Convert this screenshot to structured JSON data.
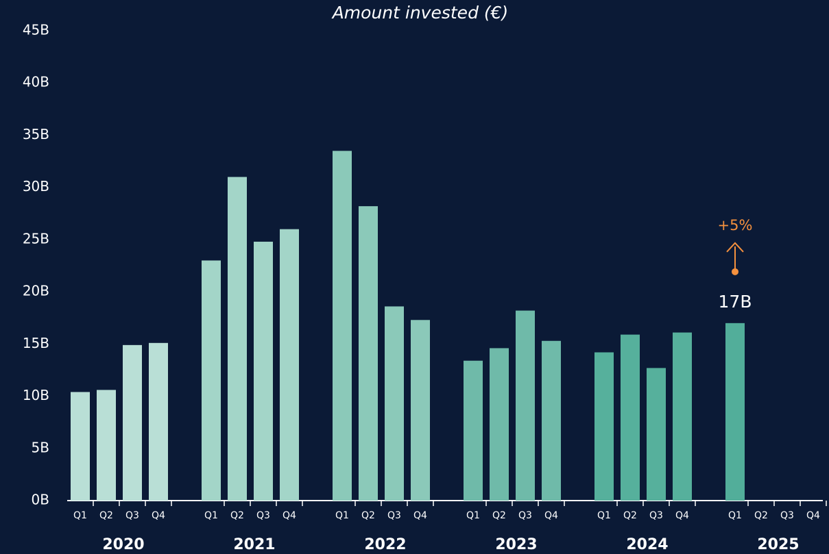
{
  "chart_data": {
    "type": "bar",
    "title": "Amount invested (€)",
    "groups": [
      "2020",
      "2021",
      "2022",
      "2023",
      "2024",
      "2025"
    ],
    "group_colors": [
      "#b9dfd6",
      "#a3d5c8",
      "#8bc9b9",
      "#6fbaa9",
      "#56b09c",
      "#52ae9a"
    ],
    "categories": [
      "Q1",
      "Q2",
      "Q3",
      "Q4",
      "Q1",
      "Q2",
      "Q3",
      "Q4",
      "Q1",
      "Q2",
      "Q3",
      "Q4",
      "Q1",
      "Q2",
      "Q3",
      "Q4",
      "Q1",
      "Q2",
      "Q3",
      "Q4",
      "Q1",
      "Q2",
      "Q3",
      "Q4"
    ],
    "values": [
      10.4,
      10.6,
      14.9,
      15.1,
      23.0,
      31.0,
      24.8,
      26.0,
      33.5,
      28.2,
      18.6,
      17.3,
      13.4,
      14.6,
      18.2,
      15.3,
      14.2,
      15.9,
      12.7,
      16.1,
      17,
      null,
      null,
      null
    ],
    "value_labels": [
      null,
      null,
      null,
      null,
      null,
      null,
      null,
      null,
      null,
      null,
      null,
      null,
      null,
      null,
      null,
      null,
      null,
      null,
      null,
      null,
      "17B",
      null,
      null,
      null
    ],
    "annotation": {
      "text": "+5%",
      "color": "#f5913e"
    },
    "ylim": [
      0,
      45
    ],
    "yticks": [
      {
        "value": 0,
        "label": "0B"
      },
      {
        "value": 5,
        "label": "5B"
      },
      {
        "value": 10,
        "label": "10B"
      },
      {
        "value": 15,
        "label": "15B"
      },
      {
        "value": 20,
        "label": "20B"
      },
      {
        "value": 25,
        "label": "25B"
      },
      {
        "value": 30,
        "label": "30B"
      },
      {
        "value": 35,
        "label": "35B"
      },
      {
        "value": 40,
        "label": "40B"
      },
      {
        "value": 45,
        "label": "45B"
      }
    ],
    "grid": false
  }
}
